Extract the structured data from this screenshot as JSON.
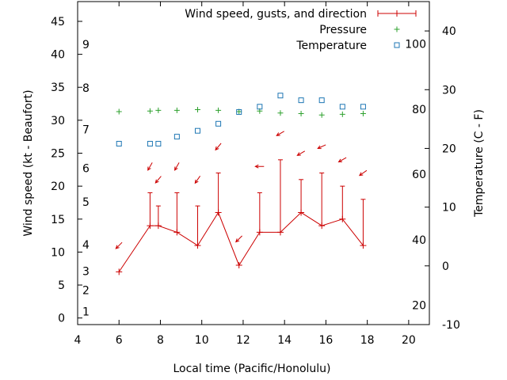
{
  "chart_data": {
    "type": "line",
    "xlabel": "Local time (Pacific/Honolulu)",
    "ylabel_left": "Wind speed (kt - Beaufort)",
    "ylabel_right": "Temperature (C - F)",
    "xlim": [
      4,
      21
    ],
    "ylim_left": [
      -1,
      48
    ],
    "ylim_right": [
      -10,
      45
    ],
    "x_ticks": [
      4,
      6,
      8,
      10,
      12,
      14,
      16,
      18,
      20
    ],
    "y_ticks_left": [
      0,
      5,
      10,
      15,
      20,
      25,
      30,
      35,
      40,
      45
    ],
    "y_ticks_right": [
      -10,
      0,
      10,
      20,
      30,
      40
    ],
    "beaufort_labels": [
      {
        "label": "1",
        "y": 1
      },
      {
        "label": "2",
        "y": 4.2
      },
      {
        "label": "3",
        "y": 7.1
      },
      {
        "label": "4",
        "y": 11.1
      },
      {
        "label": "5",
        "y": 17.6
      },
      {
        "label": "6",
        "y": 22.7
      },
      {
        "label": "7",
        "y": 28.6
      },
      {
        "label": "8",
        "y": 34.9
      },
      {
        "label": "9",
        "y": 41.5
      }
    ],
    "fahrenheit_labels": [
      {
        "label": "20",
        "t": -6.7
      },
      {
        "label": "40",
        "t": 4.4
      },
      {
        "label": "60",
        "t": 15.6
      },
      {
        "label": "80",
        "t": 26.7
      },
      {
        "label": "100",
        "t": 37.8
      }
    ],
    "legend": {
      "position": "top-right",
      "entries": [
        {
          "label": "Wind speed, gusts, and direction",
          "color": "#cc0000",
          "marker": "plus-errorbar"
        },
        {
          "label": "Pressure",
          "color": "#2ca02c",
          "marker": "plus"
        },
        {
          "label": "Temperature",
          "color": "#1f77b4",
          "marker": "square"
        }
      ]
    },
    "series": [
      {
        "name": "Wind speed, gusts, and direction",
        "color": "#cc0000",
        "axis": "left",
        "points": [
          {
            "x": 6.0,
            "speed": 7,
            "gust": 7,
            "dir_y": 11,
            "angle": 45
          },
          {
            "x": 7.5,
            "speed": 14,
            "gust": 19,
            "dir_y": 23,
            "angle": 60
          },
          {
            "x": 7.9,
            "speed": 14,
            "gust": 17,
            "dir_y": 21,
            "angle": 50
          },
          {
            "x": 8.8,
            "speed": 13,
            "gust": 19,
            "dir_y": 23,
            "angle": 60
          },
          {
            "x": 9.8,
            "speed": 11,
            "gust": 17,
            "dir_y": 21,
            "angle": 55
          },
          {
            "x": 10.8,
            "speed": 16,
            "gust": 22,
            "dir_y": 26,
            "angle": 50
          },
          {
            "x": 11.8,
            "speed": 8,
            "gust": 8,
            "dir_y": 12,
            "angle": 45
          },
          {
            "x": 12.8,
            "speed": 13,
            "gust": 19,
            "dir_y": 23,
            "angle": 0
          },
          {
            "x": 13.8,
            "speed": 13,
            "gust": 24,
            "dir_y": 28,
            "angle": 30
          },
          {
            "x": 14.8,
            "speed": 16,
            "gust": 21,
            "dir_y": 25,
            "angle": 30
          },
          {
            "x": 15.8,
            "speed": 14,
            "gust": 22,
            "dir_y": 26,
            "angle": 25
          },
          {
            "x": 16.8,
            "speed": 15,
            "gust": 20,
            "dir_y": 24,
            "angle": 30
          },
          {
            "x": 17.8,
            "speed": 11,
            "gust": 18,
            "dir_y": 22,
            "angle": 35
          }
        ]
      },
      {
        "name": "Pressure",
        "color": "#2ca02c",
        "axis": "left",
        "points": [
          {
            "x": 6.0,
            "y": 31.3
          },
          {
            "x": 7.5,
            "y": 31.4
          },
          {
            "x": 7.9,
            "y": 31.5
          },
          {
            "x": 8.8,
            "y": 31.5
          },
          {
            "x": 9.8,
            "y": 31.6
          },
          {
            "x": 10.8,
            "y": 31.5
          },
          {
            "x": 11.8,
            "y": 31.3
          },
          {
            "x": 12.8,
            "y": 31.4
          },
          {
            "x": 13.8,
            "y": 31.1
          },
          {
            "x": 14.8,
            "y": 31.0
          },
          {
            "x": 15.8,
            "y": 30.8
          },
          {
            "x": 16.8,
            "y": 30.9
          },
          {
            "x": 17.8,
            "y": 31.0
          }
        ]
      },
      {
        "name": "Temperature",
        "color": "#1f77b4",
        "axis": "right",
        "points": [
          {
            "x": 6.0,
            "y": 20.8
          },
          {
            "x": 7.5,
            "y": 20.8
          },
          {
            "x": 7.9,
            "y": 20.8
          },
          {
            "x": 8.8,
            "y": 22.0
          },
          {
            "x": 9.8,
            "y": 23.0
          },
          {
            "x": 10.8,
            "y": 24.2
          },
          {
            "x": 11.8,
            "y": 26.2
          },
          {
            "x": 12.8,
            "y": 27.1
          },
          {
            "x": 13.8,
            "y": 29.0
          },
          {
            "x": 14.8,
            "y": 28.2
          },
          {
            "x": 15.8,
            "y": 28.2
          },
          {
            "x": 16.8,
            "y": 27.1
          },
          {
            "x": 17.8,
            "y": 27.1
          }
        ]
      }
    ]
  }
}
